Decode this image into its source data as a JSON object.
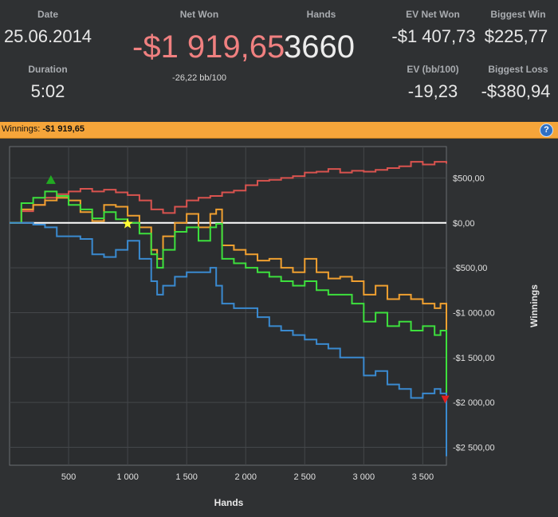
{
  "stats": {
    "date_label": "Date",
    "date_value": "25.06.2014",
    "duration_label": "Duration",
    "duration_value": "5:02",
    "net_won_label": "Net Won",
    "net_won_value": "-$1 919,65",
    "net_won_sub": "-26,22 bb/100",
    "hands_label": "Hands",
    "hands_value": "3660",
    "ev_net_won_label": "EV Net Won",
    "ev_net_won_value": "-$1 407,73",
    "ev_bb_label": "EV (bb/100)",
    "ev_bb_value": "-19,23",
    "biggest_win_label": "Biggest Win",
    "biggest_win_value": "$225,77",
    "biggest_loss_label": "Biggest Loss",
    "biggest_loss_value": "-$380,94"
  },
  "winnings_bar": {
    "label": "Winnings:",
    "value": "-$1 919,65",
    "help_icon": "?"
  },
  "colors": {
    "red": "#d9534f",
    "orange": "#f0a030",
    "green": "#3de03d",
    "blue": "#3a8ad0",
    "bar": "#f5a53a"
  },
  "chart_data": {
    "type": "line",
    "xlabel": "Hands",
    "ylabel": "Winnings",
    "xlim": [
      0,
      3700
    ],
    "ylim": [
      -2700,
      850
    ],
    "x_ticks": [
      500,
      1000,
      1500,
      2000,
      2500,
      3000,
      3500
    ],
    "x_tick_labels": [
      "500",
      "1 000",
      "1 500",
      "2 000",
      "2 500",
      "3 000",
      "3 500"
    ],
    "y_ticks": [
      500,
      0,
      -500,
      -1000,
      -1500,
      -2000,
      -2500
    ],
    "y_tick_labels": [
      "$500,00",
      "$0,00",
      "-$500,00",
      "-$1 000,00",
      "-$1 500,00",
      "-$2 000,00",
      "-$2 500,00"
    ],
    "grid": true,
    "series": [
      {
        "color": "#d9534f",
        "x": [
          0,
          100,
          200,
          300,
          400,
          500,
          600,
          700,
          800,
          900,
          1000,
          1100,
          1200,
          1300,
          1400,
          1500,
          1600,
          1700,
          1800,
          1900,
          2000,
          2100,
          2200,
          2300,
          2400,
          2500,
          2600,
          2700,
          2800,
          2900,
          3000,
          3100,
          3200,
          3300,
          3400,
          3500,
          3600,
          3700
        ],
        "y": [
          0,
          130,
          200,
          280,
          320,
          350,
          380,
          350,
          370,
          340,
          310,
          250,
          150,
          110,
          180,
          250,
          280,
          300,
          340,
          360,
          420,
          470,
          480,
          500,
          520,
          560,
          570,
          600,
          560,
          580,
          570,
          590,
          610,
          630,
          680,
          650,
          680,
          660
        ]
      },
      {
        "color": "#f0a030",
        "x": [
          0,
          100,
          200,
          300,
          400,
          500,
          600,
          700,
          800,
          900,
          1000,
          1100,
          1200,
          1250,
          1300,
          1400,
          1500,
          1600,
          1700,
          1750,
          1800,
          1900,
          2000,
          2100,
          2200,
          2300,
          2400,
          2500,
          2600,
          2700,
          2800,
          2900,
          3000,
          3100,
          3200,
          3300,
          3400,
          3500,
          3600,
          3650,
          3700
        ],
        "y": [
          0,
          150,
          200,
          250,
          280,
          250,
          120,
          20,
          200,
          180,
          80,
          -50,
          -300,
          -400,
          -150,
          0,
          100,
          -50,
          100,
          150,
          -250,
          -300,
          -350,
          -420,
          -400,
          -500,
          -550,
          -400,
          -550,
          -620,
          -600,
          -650,
          -800,
          -700,
          -850,
          -800,
          -850,
          -900,
          -950,
          -900,
          -1400
        ]
      },
      {
        "color": "#3de03d",
        "x": [
          0,
          100,
          200,
          300,
          400,
          500,
          600,
          700,
          800,
          900,
          1000,
          1100,
          1200,
          1250,
          1300,
          1400,
          1500,
          1600,
          1700,
          1750,
          1800,
          1900,
          2000,
          2100,
          2200,
          2300,
          2400,
          2500,
          2600,
          2700,
          2800,
          2900,
          3000,
          3100,
          3200,
          3300,
          3400,
          3500,
          3600,
          3650,
          3700
        ],
        "y": [
          0,
          220,
          280,
          350,
          300,
          200,
          150,
          50,
          120,
          40,
          0,
          -120,
          -350,
          -500,
          -300,
          -100,
          -50,
          -200,
          -50,
          -10,
          -400,
          -450,
          -500,
          -550,
          -600,
          -650,
          -700,
          -650,
          -750,
          -800,
          -800,
          -900,
          -1100,
          -1000,
          -1150,
          -1100,
          -1200,
          -1150,
          -1250,
          -1200,
          -1920
        ]
      },
      {
        "color": "#3a8ad0",
        "x": [
          0,
          100,
          200,
          300,
          400,
          500,
          600,
          700,
          800,
          900,
          1000,
          1100,
          1200,
          1250,
          1300,
          1400,
          1500,
          1600,
          1700,
          1750,
          1800,
          1900,
          2000,
          2100,
          2200,
          2300,
          2400,
          2500,
          2600,
          2700,
          2800,
          2900,
          3000,
          3100,
          3200,
          3300,
          3400,
          3500,
          3600,
          3650,
          3700
        ],
        "y": [
          0,
          0,
          -20,
          -50,
          -150,
          -150,
          -180,
          -350,
          -380,
          -300,
          -200,
          -400,
          -650,
          -800,
          -700,
          -600,
          -550,
          -550,
          -500,
          -700,
          -900,
          -950,
          -950,
          -1050,
          -1150,
          -1200,
          -1250,
          -1300,
          -1350,
          -1400,
          -1500,
          -1500,
          -1700,
          -1650,
          -1800,
          -1850,
          -1950,
          -1900,
          -1850,
          -1900,
          -2600
        ]
      }
    ],
    "markers": [
      {
        "type": "triangle-up",
        "color": "#22aa22",
        "x": 350,
        "y": 470
      },
      {
        "type": "star",
        "color": "#ffff33",
        "x": 1000,
        "y": -10
      },
      {
        "type": "triangle-down",
        "color": "#e02020",
        "x": 3690,
        "y": -1960
      }
    ]
  }
}
